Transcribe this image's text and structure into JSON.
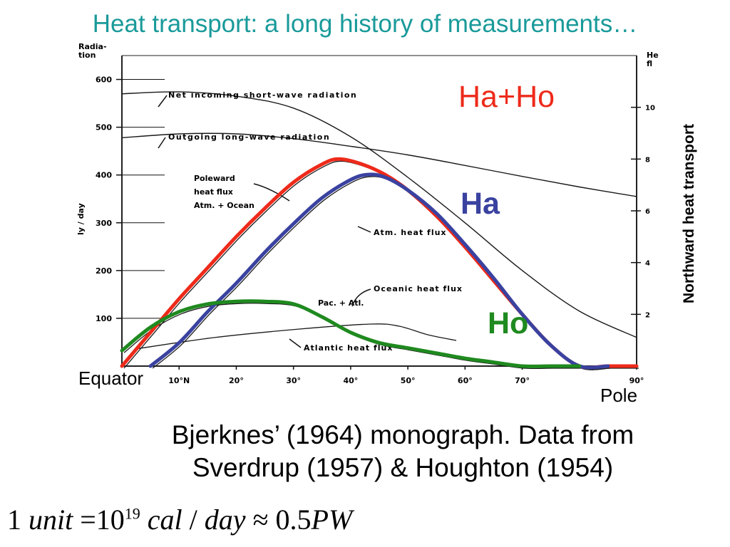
{
  "slide": {
    "title": "Heat transport: a long history of measurements…",
    "caption_line1": "Bjerknes’ (1964) monograph. Data from",
    "caption_line2": "Sverdrup (1957) & Houghton (1954)",
    "formula": {
      "lead": "1",
      "unit": "unit",
      "eq": "=",
      "base": "10",
      "exponent": "19",
      "cal": "cal",
      "slash": "/",
      "day": "day",
      "approx": "≈",
      "value": "0.5",
      "pw": "PW"
    },
    "right_axis_label": "Northward heat transport",
    "equator_label": "Equator",
    "pole_label": "Pole",
    "series_labels": {
      "total": "Ha+Ho",
      "atm": "Ha",
      "ocean": "Ho"
    },
    "colors": {
      "title": "#1a9a9a",
      "total": "#ee2a1a",
      "atm": "#3a42a0",
      "ocean": "#1f8a1f"
    }
  },
  "chart_data": {
    "type": "line",
    "left_axis_label_top": "Radia-\ntion",
    "ylabel": "ly / day",
    "right_axis_label_top": "He\nfl",
    "y_ticks": [
      100,
      200,
      300,
      400,
      500,
      600
    ],
    "y_ticks_right": [
      2,
      4,
      6,
      8,
      10
    ],
    "x_ticks": [
      {
        "value": 10,
        "label": "10°N"
      },
      {
        "value": 20,
        "label": "20°"
      },
      {
        "value": 30,
        "label": "30°"
      },
      {
        "value": 40,
        "label": "40°"
      },
      {
        "value": 50,
        "label": "50°"
      },
      {
        "value": 60,
        "label": "60°"
      },
      {
        "value": 70,
        "label": "70°"
      },
      {
        "value": 90,
        "label": "90°"
      }
    ],
    "ylim": [
      0,
      650
    ],
    "y_right_lim": [
      0,
      12
    ],
    "annotations": {
      "net_incoming": "Net incoming short-wave radiation",
      "outgoing": "Outgoing long-wave radiation",
      "poleward_1": "Poleward",
      "poleward_2": "heat flux",
      "poleward_3": "Atm. + Ocean",
      "atm_flux": "Atm. heat flux",
      "oceanic_flux": "Oceanic heat flux",
      "pac_atl": "Pac. + Atl.",
      "atlantic_flux": "Atlantic heat flux"
    },
    "radiation_series": [
      {
        "name": "Net incoming short-wave radiation",
        "x": [
          0,
          10,
          20,
          30,
          40,
          50,
          60,
          70,
          80,
          90
        ],
        "y": [
          570,
          574,
          565,
          540,
          480,
          395,
          300,
          200,
          115,
          60
        ]
      },
      {
        "name": "Outgoing long-wave radiation",
        "x": [
          0,
          10,
          20,
          30,
          40,
          50,
          60,
          70,
          80,
          90
        ],
        "y": [
          478,
          486,
          486,
          476,
          460,
          442,
          420,
          397,
          375,
          355
        ]
      }
    ],
    "series": [
      {
        "name": "Ha+Ho",
        "x": [
          0,
          5,
          10,
          15,
          20,
          25,
          30,
          35,
          38,
          42,
          46,
          50,
          55,
          60,
          65,
          70,
          75,
          80,
          85,
          90
        ],
        "y": [
          0,
          1.3,
          2.6,
          3.8,
          5.0,
          6.1,
          7.1,
          7.8,
          8.0,
          7.8,
          7.4,
          6.8,
          5.8,
          4.6,
          3.3,
          2.0,
          0.8,
          0,
          0,
          0
        ]
      },
      {
        "name": "Ha",
        "x": [
          5,
          10,
          15,
          20,
          25,
          30,
          35,
          40,
          43,
          46,
          50,
          55,
          60,
          65,
          70,
          75,
          80,
          85
        ],
        "y": [
          0,
          0.9,
          2.1,
          3.2,
          4.4,
          5.5,
          6.5,
          7.2,
          7.4,
          7.3,
          6.8,
          5.9,
          4.7,
          3.4,
          2.0,
          0.8,
          0,
          0
        ]
      },
      {
        "name": "Ho",
        "x": [
          0,
          5,
          10,
          15,
          20,
          25,
          30,
          35,
          40,
          45,
          50,
          55,
          60,
          65,
          70,
          75,
          80
        ],
        "y": [
          0.6,
          1.5,
          2.1,
          2.4,
          2.5,
          2.5,
          2.4,
          1.9,
          1.3,
          0.9,
          0.7,
          0.5,
          0.3,
          0.15,
          0,
          0,
          0
        ]
      }
    ]
  }
}
